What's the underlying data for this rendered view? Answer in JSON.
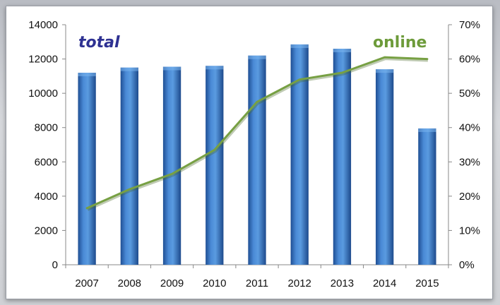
{
  "chart_data": {
    "type": "bar",
    "title": "",
    "categories": [
      "2007",
      "2008",
      "2009",
      "2010",
      "2011",
      "2012",
      "2013",
      "2014",
      "2015"
    ],
    "series": [
      {
        "name": "total",
        "type": "bar",
        "axis": "left",
        "color": "#3a78c4",
        "values": [
          11200,
          11500,
          11550,
          11600,
          12200,
          12850,
          12600,
          11400,
          7950
        ]
      },
      {
        "name": "online",
        "type": "line",
        "axis": "right",
        "color": "#77a043",
        "values": [
          16.5,
          22,
          26.5,
          33.5,
          47.5,
          54,
          56,
          60.5,
          60
        ]
      }
    ],
    "y_left": {
      "min": 0,
      "max": 14000,
      "ticks": [
        "0",
        "2000",
        "4000",
        "6000",
        "8000",
        "10000",
        "12000",
        "14000"
      ]
    },
    "y_right": {
      "min": 0,
      "max": 70,
      "ticks": [
        "0%",
        "10%",
        "20%",
        "30%",
        "40%",
        "50%",
        "60%",
        "70%"
      ]
    },
    "grid": false,
    "legend_labels": {
      "total": "total",
      "online": "online"
    }
  }
}
